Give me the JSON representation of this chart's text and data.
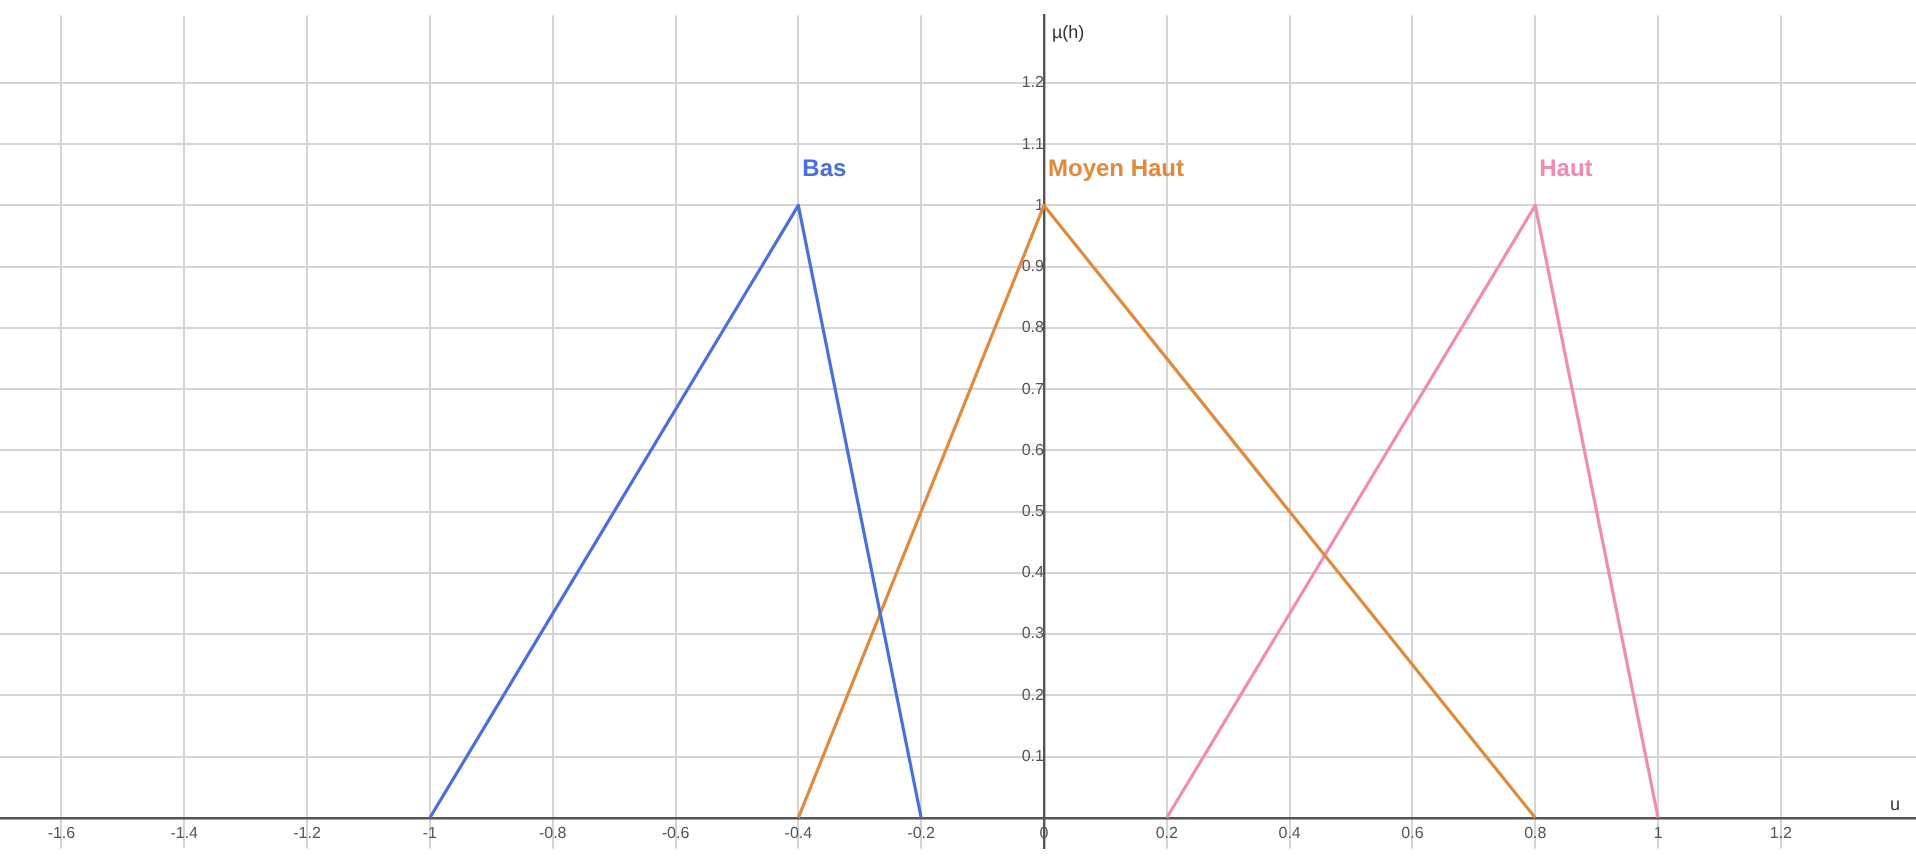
{
  "chart_data": {
    "type": "line",
    "xlabel": "u",
    "ylabel": "µ(h)",
    "xlim": [
      -1.7,
      1.42
    ],
    "ylim": [
      -0.05,
      1.31
    ],
    "xticks": [
      -1.6,
      -1.4,
      -1.2,
      -1,
      -0.8,
      -0.6,
      -0.4,
      -0.2,
      0,
      0.2,
      0.4,
      0.6,
      0.8,
      1,
      1.2
    ],
    "yticks": [
      0.1,
      0.2,
      0.3,
      0.4,
      0.5,
      0.6,
      0.7,
      0.8,
      0.9,
      1,
      1.1,
      1.2
    ],
    "grid": true,
    "legend": false,
    "marker": "none",
    "line_style": "solid",
    "series": [
      {
        "name": "Bas",
        "color": "#4a6fd8",
        "x": [
          -1,
          -0.4,
          -0.2
        ],
        "values": [
          0,
          1,
          0
        ]
      },
      {
        "name": "Moyen Haut",
        "color": "#e08a3c",
        "x": [
          -0.4,
          0,
          0.8
        ],
        "values": [
          0,
          1,
          0
        ]
      },
      {
        "name": "Haut",
        "color": "#f08cb4",
        "x": [
          0.2,
          0.8,
          1
        ],
        "values": [
          0,
          1,
          0
        ]
      }
    ]
  }
}
